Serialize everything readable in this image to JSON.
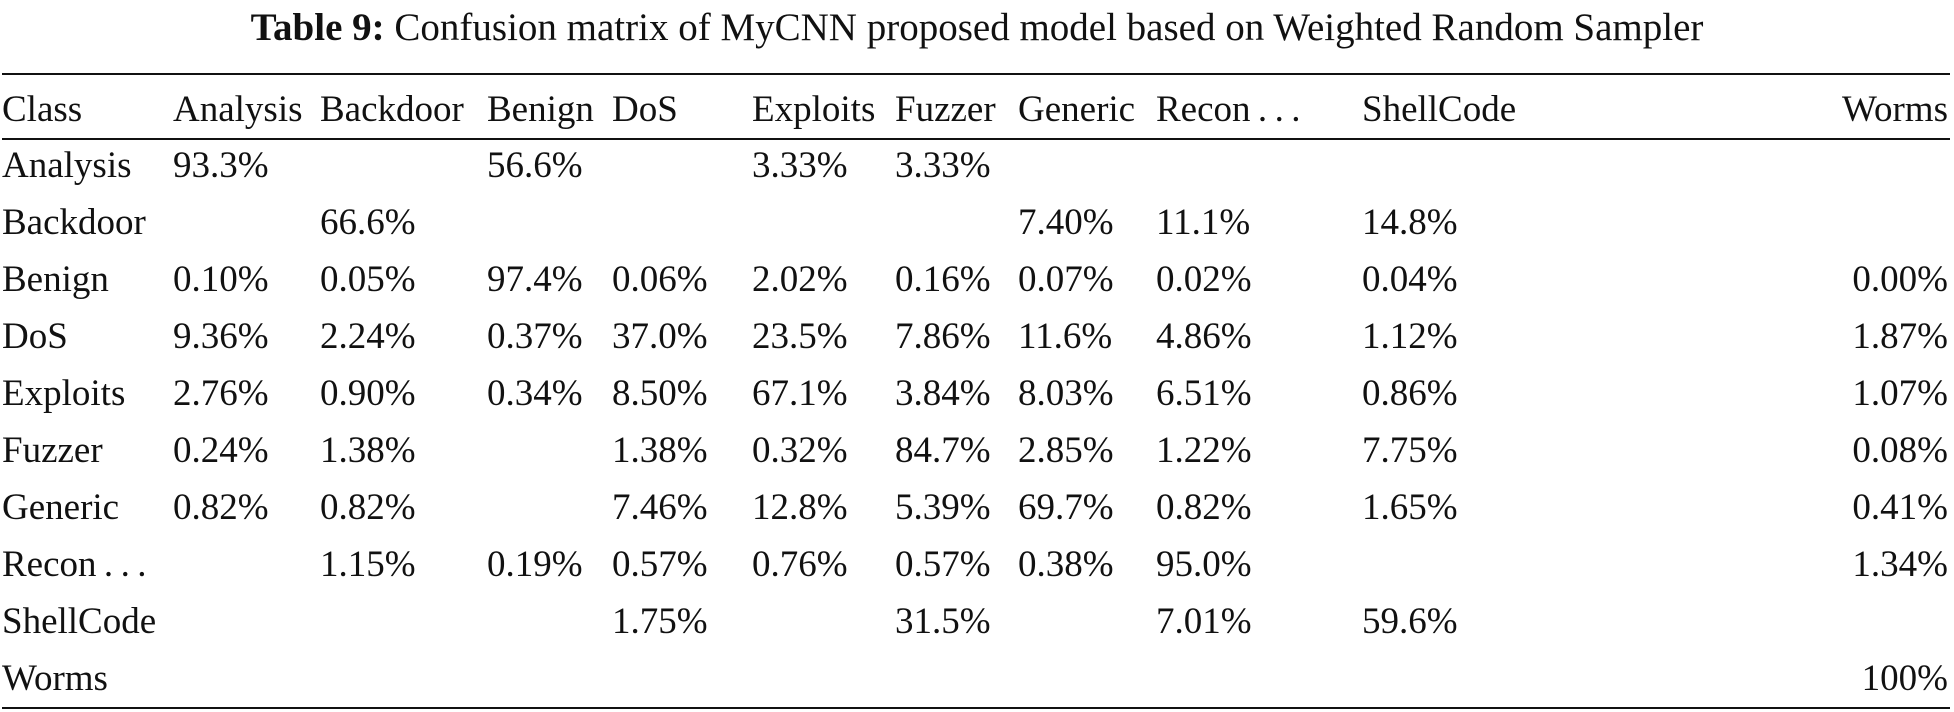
{
  "caption": {
    "label": "Table 9:",
    "text": "Confusion matrix of MyCNN proposed model based on Weighted Random Sampler"
  },
  "table": {
    "columns": [
      "Class",
      "Analysis",
      "Backdoor",
      "Benign",
      "DoS",
      "Exploits",
      "Fuzzer",
      "Generic",
      "Recon . . .",
      "ShellCode",
      "Worms"
    ],
    "rows": [
      [
        "Analysis",
        "93.3%",
        "",
        "56.6%",
        "",
        "3.33%",
        "3.33%",
        "",
        "",
        "",
        ""
      ],
      [
        "Backdoor",
        "",
        "66.6%",
        "",
        "",
        "",
        "",
        "7.40%",
        "11.1%",
        "14.8%",
        ""
      ],
      [
        "Benign",
        "0.10%",
        "0.05%",
        "97.4%",
        "0.06%",
        "2.02%",
        "0.16%",
        "0.07%",
        "0.02%",
        "0.04%",
        "0.00%"
      ],
      [
        "DoS",
        "9.36%",
        "2.24%",
        "0.37%",
        "37.0%",
        "23.5%",
        "7.86%",
        "11.6%",
        "4.86%",
        "1.12%",
        "1.87%"
      ],
      [
        "Exploits",
        "2.76%",
        "0.90%",
        "0.34%",
        "8.50%",
        "67.1%",
        "3.84%",
        "8.03%",
        "6.51%",
        "0.86%",
        "1.07%"
      ],
      [
        "Fuzzer",
        "0.24%",
        "1.38%",
        "",
        "1.38%",
        "0.32%",
        "84.7%",
        "2.85%",
        "1.22%",
        "7.75%",
        "0.08%"
      ],
      [
        "Generic",
        "0.82%",
        "0.82%",
        "",
        "7.46%",
        "12.8%",
        "5.39%",
        "69.7%",
        "0.82%",
        "1.65%",
        "0.41%"
      ],
      [
        "Recon . . .",
        "",
        "1.15%",
        "0.19%",
        "0.57%",
        "0.76%",
        "0.57%",
        "0.38%",
        "95.0%",
        "",
        "1.34%"
      ],
      [
        "ShellCode",
        "",
        "",
        "",
        "1.75%",
        "",
        "31.5%",
        "",
        "7.01%",
        "59.6%",
        ""
      ],
      [
        "Worms",
        "",
        "",
        "",
        "",
        "",
        "",
        "",
        "",
        "",
        "100%"
      ]
    ]
  }
}
